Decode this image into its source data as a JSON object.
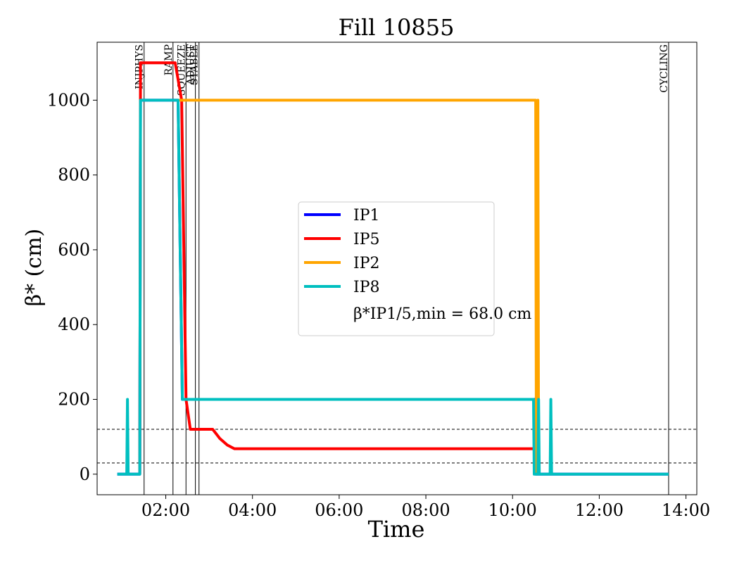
{
  "chart_data": {
    "type": "line",
    "title": "Fill 10855",
    "xlabel": "Time",
    "ylabel": "β* (cm)",
    "xlim": [
      "00:25",
      "14:15"
    ],
    "ylim": [
      -55,
      1155
    ],
    "xticks": [
      "02:00",
      "04:00",
      "06:00",
      "08:00",
      "10:00",
      "12:00",
      "14:00"
    ],
    "yticks": [
      0,
      200,
      400,
      600,
      800,
      1000
    ],
    "grid": false,
    "legend_position": "center",
    "legend_note": "β*IP1/5,min = 68.0 cm",
    "series": [
      {
        "name": "IP1",
        "color": "#0000ff",
        "points": [
          [
            "00:53",
            0
          ],
          [
            "01:24",
            0
          ],
          [
            "01:25",
            1000
          ],
          [
            "02:17",
            1000
          ],
          [
            "02:20",
            600
          ],
          [
            "02:23",
            200
          ],
          [
            "10:32",
            200
          ],
          [
            "10:32",
            0
          ],
          [
            "13:36",
            0
          ]
        ]
      },
      {
        "name": "IP5",
        "color": "#ff0000",
        "points": [
          [
            "01:24",
            0
          ],
          [
            "01:25",
            1100
          ],
          [
            "02:13",
            1100
          ],
          [
            "02:22",
            1000
          ],
          [
            "02:28",
            200
          ],
          [
            "02:34",
            120
          ],
          [
            "03:05",
            120
          ],
          [
            "03:15",
            95
          ],
          [
            "03:25",
            78
          ],
          [
            "03:35",
            68
          ],
          [
            "10:29",
            68
          ]
        ]
      },
      {
        "name": "IP2",
        "color": "#ffa500",
        "points": [
          [
            "02:17",
            1000
          ],
          [
            "10:32",
            1000
          ],
          [
            "10:33",
            0
          ],
          [
            "10:35",
            1000
          ],
          [
            "10:36",
            0
          ]
        ]
      },
      {
        "name": "IP8",
        "color": "#00bfbf",
        "points": [
          [
            "00:53",
            0
          ],
          [
            "01:06",
            0
          ],
          [
            "01:07",
            200
          ],
          [
            "01:08",
            0
          ],
          [
            "01:24",
            0
          ],
          [
            "01:25",
            1000
          ],
          [
            "02:17",
            1000
          ],
          [
            "02:20",
            600
          ],
          [
            "02:23",
            200
          ],
          [
            "10:29",
            200
          ],
          [
            "10:30",
            0
          ],
          [
            "10:35",
            0
          ],
          [
            "10:36",
            200
          ],
          [
            "10:37",
            0
          ],
          [
            "10:52",
            0
          ],
          [
            "10:53",
            200
          ],
          [
            "10:54",
            0
          ],
          [
            "13:36",
            0
          ]
        ]
      }
    ],
    "reference_lines_y": [
      120,
      30
    ],
    "beam_modes": [
      {
        "label": "INJPHYS",
        "time": "01:30"
      },
      {
        "label": "RAMP",
        "time": "02:10"
      },
      {
        "label": "SQUEEZE",
        "time": "02:28"
      },
      {
        "label": "ADJUST",
        "time": "02:41"
      },
      {
        "label": "STABLE",
        "time": "02:46"
      },
      {
        "label": "CYCLING",
        "time": "13:36"
      }
    ]
  }
}
